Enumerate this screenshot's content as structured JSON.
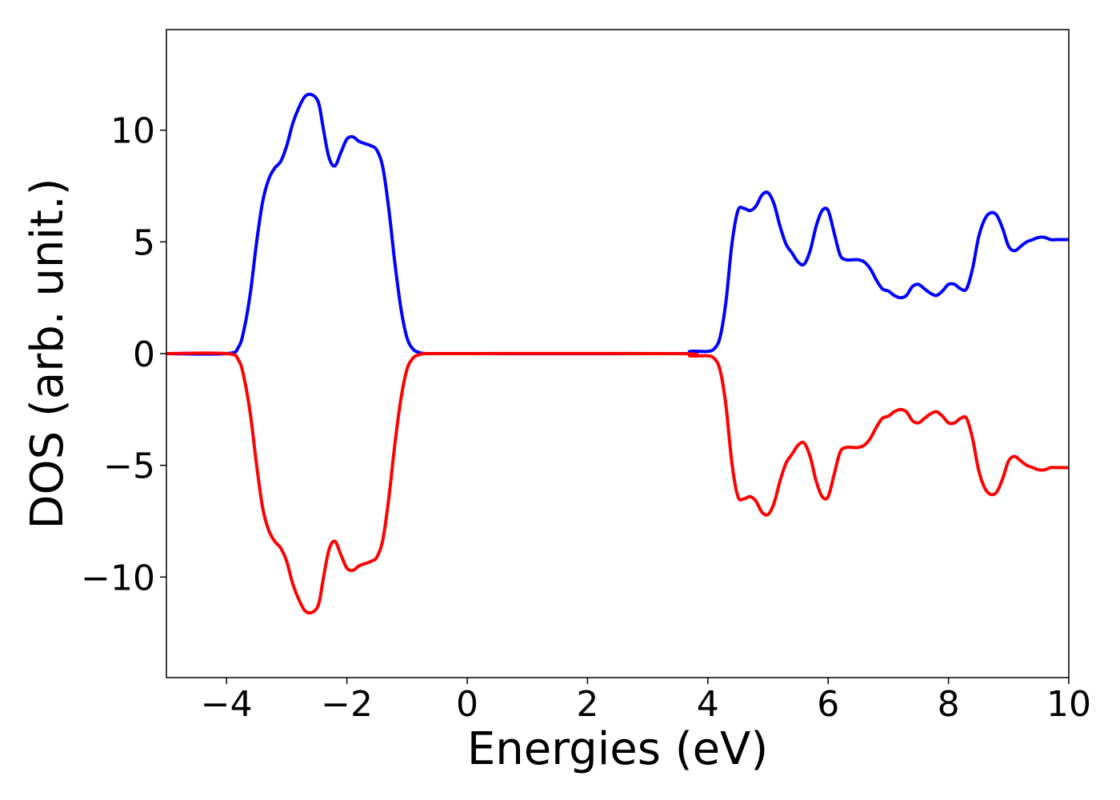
{
  "chart_data": {
    "type": "line",
    "title": "",
    "xlabel": "Energies (eV)",
    "ylabel": "DOS (arb. unit.)",
    "xlim": [
      -5,
      10
    ],
    "ylim": [
      -14.5,
      14.5
    ],
    "x_ticks": [
      -4,
      -2,
      0,
      2,
      4,
      6,
      8,
      10
    ],
    "x_tick_labels": [
      "−4",
      "−2",
      "0",
      "2",
      "4",
      "6",
      "8",
      "10"
    ],
    "y_ticks": [
      -10,
      -5,
      0,
      5,
      10
    ],
    "y_tick_labels": [
      "−10",
      "−5",
      "0",
      "5",
      "10"
    ],
    "grid": false,
    "legend": "none",
    "series": [
      {
        "color": "#0000ff",
        "x": [
          -5.0,
          -4.0,
          -3.8,
          -3.7,
          -3.6,
          -3.5,
          -3.4,
          -3.3,
          -3.2,
          -3.1,
          -3.0,
          -2.9,
          -2.8,
          -2.7,
          -2.6,
          -2.5,
          -2.45,
          -2.4,
          -2.3,
          -2.2,
          -2.1,
          -2.0,
          -1.9,
          -1.8,
          -1.7,
          -1.6,
          -1.5,
          -1.4,
          -1.3,
          -1.2,
          -1.1,
          -1.0,
          -0.9,
          -0.8,
          -0.7,
          -0.6,
          -0.5,
          0.0,
          3.5,
          3.7,
          3.9,
          4.0,
          4.1,
          4.2,
          4.3,
          4.4,
          4.5,
          4.6,
          4.7,
          4.8,
          4.9,
          5.0,
          5.1,
          5.2,
          5.3,
          5.4,
          5.5,
          5.6,
          5.7,
          5.8,
          5.9,
          6.0,
          6.1,
          6.2,
          6.3,
          6.4,
          6.5,
          6.6,
          6.7,
          6.8,
          6.9,
          7.0,
          7.1,
          7.2,
          7.3,
          7.4,
          7.5,
          7.6,
          7.7,
          7.8,
          7.9,
          8.0,
          8.1,
          8.2,
          8.3,
          8.4,
          8.5,
          8.6,
          8.7,
          8.8,
          8.9,
          9.0,
          9.1,
          9.2,
          9.3,
          9.4,
          9.5,
          9.6,
          9.7,
          9.8,
          9.9,
          10.0
        ],
        "y": [
          0.0,
          0.0,
          0.3,
          1.2,
          2.8,
          5.0,
          6.8,
          7.8,
          8.3,
          8.6,
          9.3,
          10.3,
          11.0,
          11.5,
          11.6,
          11.4,
          11.0,
          10.2,
          8.8,
          8.4,
          9.0,
          9.6,
          9.7,
          9.5,
          9.4,
          9.3,
          9.1,
          8.3,
          6.4,
          4.0,
          2.0,
          0.7,
          0.2,
          0.05,
          0.0,
          0.0,
          0.0,
          0.0,
          0.0,
          0.1,
          0.1,
          0.1,
          0.2,
          0.7,
          2.3,
          4.9,
          6.4,
          6.5,
          6.4,
          6.6,
          7.1,
          7.2,
          6.7,
          5.7,
          4.9,
          4.5,
          4.1,
          4.0,
          4.6,
          5.7,
          6.4,
          6.4,
          5.4,
          4.4,
          4.2,
          4.2,
          4.2,
          4.1,
          3.8,
          3.3,
          2.9,
          2.8,
          2.6,
          2.5,
          2.6,
          3.0,
          3.1,
          2.9,
          2.7,
          2.6,
          2.8,
          3.1,
          3.1,
          2.9,
          2.9,
          3.8,
          5.2,
          6.0,
          6.3,
          6.2,
          5.6,
          4.8,
          4.6,
          4.8,
          5.0,
          5.1,
          5.2,
          5.2,
          5.1,
          5.1,
          5.1,
          5.1
        ]
      },
      {
        "color": "#ff0000",
        "x": [
          -5.0,
          -4.0,
          -3.8,
          -3.7,
          -3.6,
          -3.5,
          -3.4,
          -3.3,
          -3.2,
          -3.1,
          -3.0,
          -2.9,
          -2.8,
          -2.7,
          -2.6,
          -2.5,
          -2.45,
          -2.4,
          -2.3,
          -2.2,
          -2.1,
          -2.0,
          -1.9,
          -1.8,
          -1.7,
          -1.6,
          -1.5,
          -1.4,
          -1.3,
          -1.2,
          -1.1,
          -1.0,
          -0.9,
          -0.8,
          -0.7,
          -0.6,
          -0.5,
          0.0,
          3.5,
          3.7,
          3.9,
          4.0,
          4.1,
          4.2,
          4.3,
          4.4,
          4.5,
          4.6,
          4.7,
          4.8,
          4.9,
          5.0,
          5.1,
          5.2,
          5.3,
          5.4,
          5.5,
          5.6,
          5.7,
          5.8,
          5.9,
          6.0,
          6.1,
          6.2,
          6.3,
          6.4,
          6.5,
          6.6,
          6.7,
          6.8,
          6.9,
          7.0,
          7.1,
          7.2,
          7.3,
          7.4,
          7.5,
          7.6,
          7.7,
          7.8,
          7.9,
          8.0,
          8.1,
          8.2,
          8.3,
          8.4,
          8.5,
          8.6,
          8.7,
          8.8,
          8.9,
          9.0,
          9.1,
          9.2,
          9.3,
          9.4,
          9.5,
          9.6,
          9.7,
          9.8,
          9.9,
          10.0
        ],
        "y": [
          0.0,
          0.0,
          -0.3,
          -1.2,
          -2.8,
          -5.0,
          -6.9,
          -7.9,
          -8.4,
          -8.7,
          -9.3,
          -10.3,
          -11.0,
          -11.5,
          -11.6,
          -11.4,
          -11.0,
          -10.2,
          -8.8,
          -8.4,
          -9.0,
          -9.6,
          -9.7,
          -9.5,
          -9.4,
          -9.3,
          -9.1,
          -8.3,
          -6.4,
          -4.0,
          -2.0,
          -0.7,
          -0.2,
          -0.05,
          0.0,
          0.0,
          0.0,
          0.0,
          0.0,
          -0.1,
          -0.1,
          -0.1,
          -0.2,
          -0.7,
          -2.3,
          -4.9,
          -6.4,
          -6.5,
          -6.4,
          -6.6,
          -7.1,
          -7.2,
          -6.7,
          -5.7,
          -4.9,
          -4.5,
          -4.1,
          -4.0,
          -4.6,
          -5.7,
          -6.4,
          -6.4,
          -5.4,
          -4.4,
          -4.2,
          -4.2,
          -4.2,
          -4.1,
          -3.8,
          -3.3,
          -2.9,
          -2.8,
          -2.6,
          -2.5,
          -2.6,
          -3.0,
          -3.1,
          -2.9,
          -2.7,
          -2.6,
          -2.8,
          -3.1,
          -3.1,
          -2.9,
          -2.9,
          -3.8,
          -5.2,
          -6.0,
          -6.3,
          -6.2,
          -5.6,
          -4.8,
          -4.6,
          -4.8,
          -5.0,
          -5.1,
          -5.2,
          -5.2,
          -5.1,
          -5.1,
          -5.1,
          -5.1
        ]
      }
    ]
  }
}
